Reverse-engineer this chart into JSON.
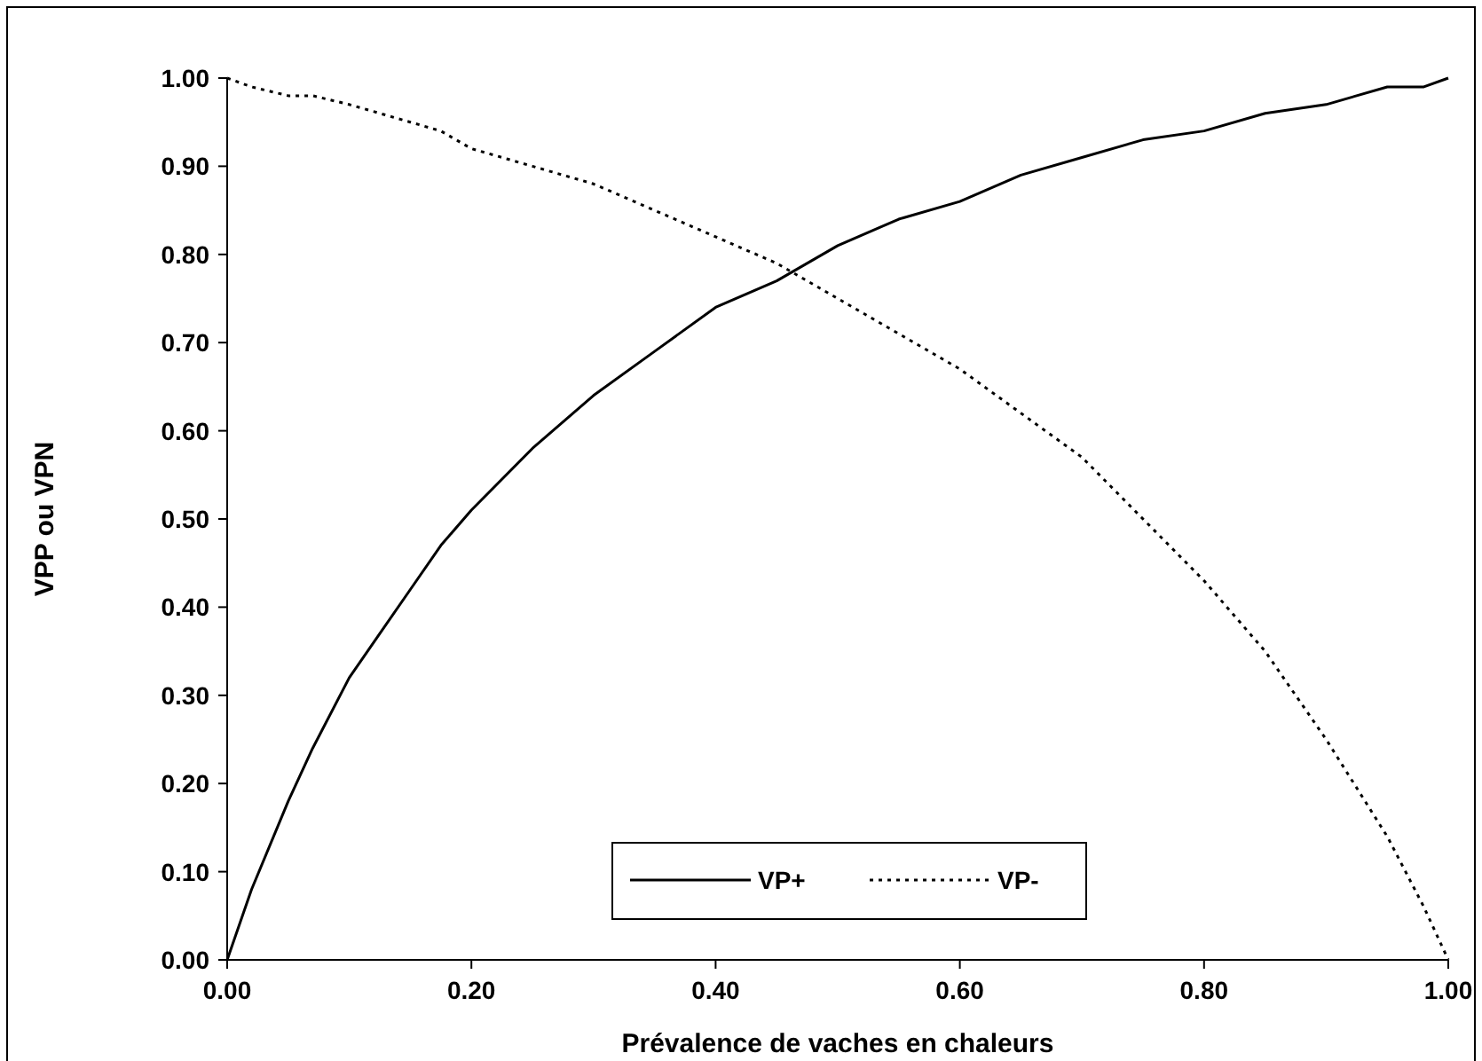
{
  "chart_data": {
    "type": "line",
    "xlabel": "Prévalence de vaches en chaleurs",
    "ylabel": "VPP ou VPN",
    "x": [
      0,
      0.02,
      0.05,
      0.07,
      0.1,
      0.125,
      0.15,
      0.175,
      0.2,
      0.25,
      0.3,
      0.35,
      0.4,
      0.45,
      0.5,
      0.55,
      0.6,
      0.65,
      0.7,
      0.75,
      0.8,
      0.85,
      0.9,
      0.95,
      0.98,
      1
    ],
    "series": [
      {
        "name": "VP+",
        "color": "#000000",
        "line_style": "solid",
        "values": [
          0,
          0.08,
          0.18,
          0.24,
          0.32,
          0.37,
          0.42,
          0.47,
          0.51,
          0.58,
          0.64,
          0.69,
          0.74,
          0.77,
          0.81,
          0.84,
          0.86,
          0.89,
          0.91,
          0.93,
          0.94,
          0.96,
          0.97,
          0.99,
          0.99,
          1
        ]
      },
      {
        "name": "VP-",
        "color": "#000000",
        "line_style": "dotted",
        "values": [
          1,
          0.99,
          0.98,
          0.98,
          0.97,
          0.96,
          0.95,
          0.94,
          0.92,
          0.9,
          0.88,
          0.85,
          0.82,
          0.79,
          0.75,
          0.71,
          0.67,
          0.62,
          0.57,
          0.5,
          0.43,
          0.35,
          0.25,
          0.14,
          0.06,
          0
        ]
      }
    ],
    "xlim": [
      0,
      1
    ],
    "xticks": [
      {
        "value": 0,
        "label": "0.00"
      },
      {
        "value": 0.2,
        "label": "0.20"
      },
      {
        "value": 0.4,
        "label": "0.40"
      },
      {
        "value": 0.6,
        "label": "0.60"
      },
      {
        "value": 0.8,
        "label": "0.80"
      },
      {
        "value": 1,
        "label": "1.00"
      }
    ],
    "ylim": [
      0,
      1
    ],
    "yticks": [
      {
        "value": 0,
        "label": "0.00"
      },
      {
        "value": 0.1,
        "label": "0.10"
      },
      {
        "value": 0.2,
        "label": "0.20"
      },
      {
        "value": 0.3,
        "label": "0.30"
      },
      {
        "value": 0.4,
        "label": "0.40"
      },
      {
        "value": 0.5,
        "label": "0.50"
      },
      {
        "value": 0.6,
        "label": "0.60"
      },
      {
        "value": 0.7,
        "label": "0.70"
      },
      {
        "value": 0.8,
        "label": "0.80"
      },
      {
        "value": 0.9,
        "label": "0.90"
      },
      {
        "value": 1,
        "label": "1.00"
      }
    ],
    "grid": false,
    "legend": "bottom",
    "marker": "none"
  }
}
